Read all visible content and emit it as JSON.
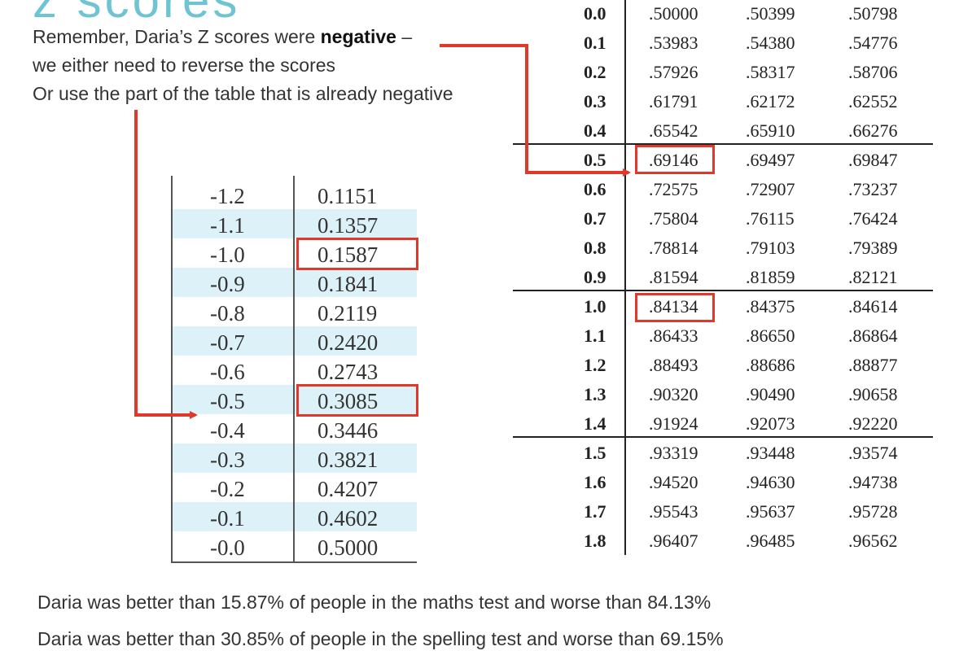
{
  "title_fragment": "z scores",
  "intro": {
    "line1_prefix": "Remember, Daria’s Z scores were ",
    "line1_bold": "negative",
    "line1_suffix": " –",
    "line2": "we either need to reverse the scores",
    "line3": "Or use the part of the table that is already negative"
  },
  "negative_table": {
    "rows": [
      {
        "z": "-1.2",
        "p": "0.1151"
      },
      {
        "z": "-1.1",
        "p": "0.1357"
      },
      {
        "z": "-1.0",
        "p": "0.1587"
      },
      {
        "z": "-0.9",
        "p": "0.1841"
      },
      {
        "z": "-0.8",
        "p": "0.2119"
      },
      {
        "z": "-0.7",
        "p": "0.2420"
      },
      {
        "z": "-0.6",
        "p": "0.2743"
      },
      {
        "z": "-0.5",
        "p": "0.3085"
      },
      {
        "z": "-0.4",
        "p": "0.3446"
      },
      {
        "z": "-0.3",
        "p": "0.3821"
      },
      {
        "z": "-0.2",
        "p": "0.4207"
      },
      {
        "z": "-0.1",
        "p": "0.4602"
      },
      {
        "z": "-0.0",
        "p": "0.5000"
      }
    ]
  },
  "positive_table": {
    "rows": [
      {
        "z": "0.0",
        "c1": ".50000",
        "c2": ".50399",
        "c3": ".50798"
      },
      {
        "z": "0.1",
        "c1": ".53983",
        "c2": ".54380",
        "c3": ".54776"
      },
      {
        "z": "0.2",
        "c1": ".57926",
        "c2": ".58317",
        "c3": ".58706"
      },
      {
        "z": "0.3",
        "c1": ".61791",
        "c2": ".62172",
        "c3": ".62552"
      },
      {
        "z": "0.4",
        "c1": ".65542",
        "c2": ".65910",
        "c3": ".66276"
      },
      {
        "z": "0.5",
        "c1": ".69146",
        "c2": ".69497",
        "c3": ".69847"
      },
      {
        "z": "0.6",
        "c1": ".72575",
        "c2": ".72907",
        "c3": ".73237"
      },
      {
        "z": "0.7",
        "c1": ".75804",
        "c2": ".76115",
        "c3": ".76424"
      },
      {
        "z": "0.8",
        "c1": ".78814",
        "c2": ".79103",
        "c3": ".79389"
      },
      {
        "z": "0.9",
        "c1": ".81594",
        "c2": ".81859",
        "c3": ".82121"
      },
      {
        "z": "1.0",
        "c1": ".84134",
        "c2": ".84375",
        "c3": ".84614"
      },
      {
        "z": "1.1",
        "c1": ".86433",
        "c2": ".86650",
        "c3": ".86864"
      },
      {
        "z": "1.2",
        "c1": ".88493",
        "c2": ".88686",
        "c3": ".88877"
      },
      {
        "z": "1.3",
        "c1": ".90320",
        "c2": ".90490",
        "c3": ".90658"
      },
      {
        "z": "1.4",
        "c1": ".91924",
        "c2": ".92073",
        "c3": ".92220"
      },
      {
        "z": "1.5",
        "c1": ".93319",
        "c2": ".93448",
        "c3": ".93574"
      },
      {
        "z": "1.6",
        "c1": ".94520",
        "c2": ".94630",
        "c3": ".94738"
      },
      {
        "z": "1.7",
        "c1": ".95543",
        "c2": ".95637",
        "c3": ".95728"
      },
      {
        "z": "1.8",
        "c1": ".96407",
        "c2": ".96485",
        "c3": ".96562"
      }
    ]
  },
  "conclusions": {
    "maths": "Daria was better than 15.87% of people in the maths test and worse than 84.13%",
    "spelling": "Daria was better than 30.85% of people in the spelling test and worse than 69.15%"
  },
  "colors": {
    "highlight": "#e0392b",
    "row_shade": "#ddf2f8",
    "title_accent": "#6fc4d4"
  }
}
